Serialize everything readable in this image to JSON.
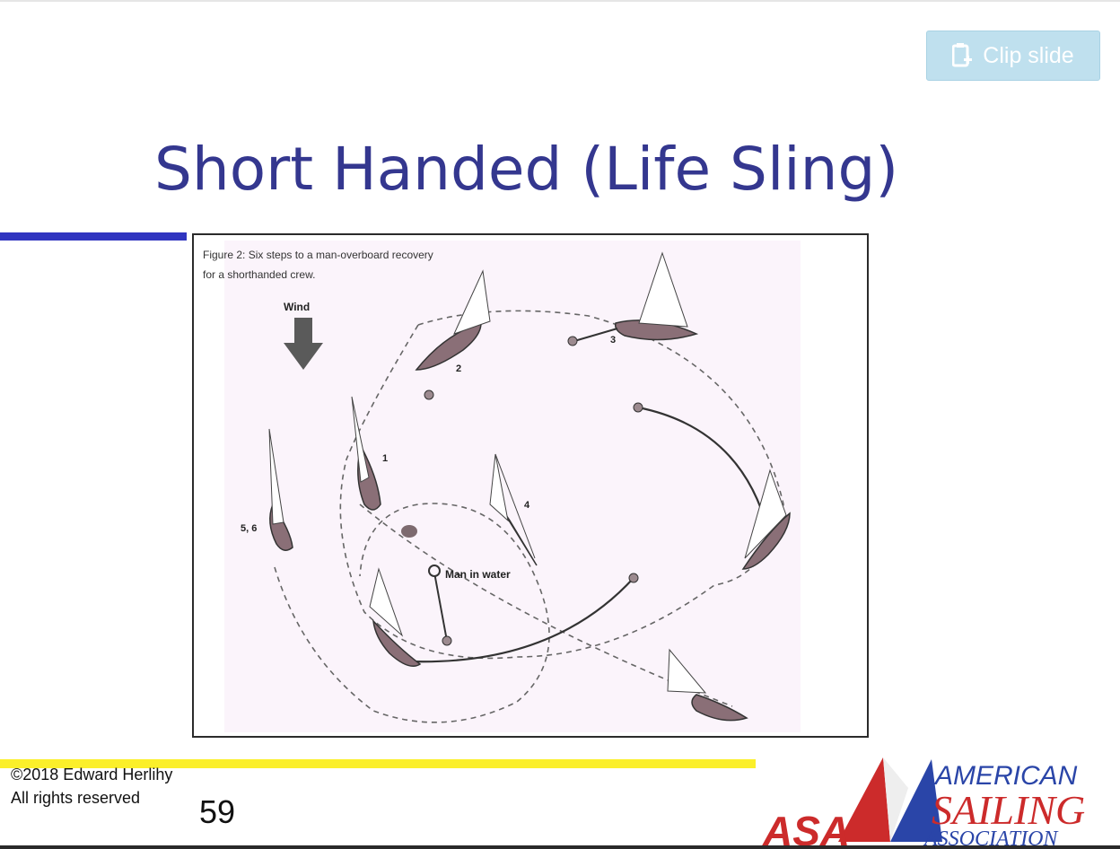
{
  "toolbar": {
    "clip_label": "Clip slide"
  },
  "slide": {
    "title": "Short Handed (Life Sling)",
    "figure": {
      "caption_line1": "Figure 2: Six steps to a man-overboard recovery",
      "caption_line2": "for a shorthanded crew.",
      "wind_label": "Wind",
      "step_labels": [
        "1",
        "2",
        "3",
        "4",
        "5, 6"
      ],
      "mob_label": "Man in water"
    },
    "copyright_line1": "©2018 Edward Herlihy",
    "copyright_line2": "All rights reserved",
    "page_number": "59"
  },
  "logo": {
    "initials": "ASA",
    "line1": "AMERICAN",
    "line2": "SAILING",
    "line3": "ASSOCIATION"
  },
  "colors": {
    "title": "#34378f",
    "accent_blue": "#3035c0",
    "accent_yellow": "#fbef2a",
    "clip_button": "#bfe0ee",
    "figure_bg": "#fbf4fb",
    "logo_red": "#cc2b2b",
    "logo_blue": "#2a45a8"
  }
}
